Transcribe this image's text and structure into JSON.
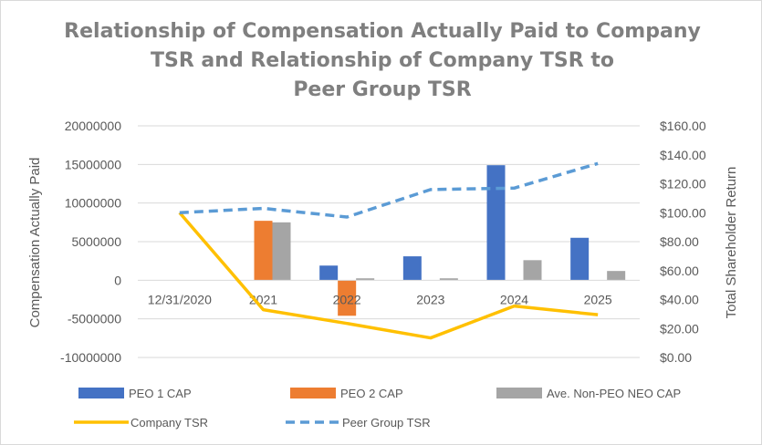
{
  "chart_data": {
    "type": "bar",
    "title_lines": [
      "Relationship of Compensation Actually Paid to Company",
      "TSR and Relationship of Company TSR to",
      "Peer Group TSR"
    ],
    "categories": [
      "12/31/2020",
      "2021",
      "2022",
      "2023",
      "2024",
      "2025"
    ],
    "ylabel": "Compensation Actually Paid",
    "y2label": "Total Shareholder Return",
    "ylim": [
      -10000000,
      20000000
    ],
    "y2lim": [
      0,
      160
    ],
    "y_ticks": [
      "20000000",
      "15000000",
      "10000000",
      "5000000",
      "0",
      "-5000000",
      "-10000000"
    ],
    "y2_ticks": [
      "$160.00",
      "$140.00",
      "$120.00",
      "$100.00",
      "$80.00",
      "$60.00",
      "$40.00",
      "$20.00",
      "$0.00"
    ],
    "grid": true,
    "legend_position": "bottom",
    "series": [
      {
        "name": "PEO 1 CAP",
        "type": "bar",
        "axis": "left",
        "color": "#4472c4",
        "values": [
          null,
          null,
          1900000,
          3100000,
          14900000,
          5500000
        ]
      },
      {
        "name": "PEO 2 CAP",
        "type": "bar",
        "axis": "left",
        "color": "#ed7d31",
        "values": [
          null,
          7700000,
          -4600000,
          null,
          null,
          null
        ]
      },
      {
        "name": "Ave. Non-PEO NEO CAP",
        "type": "bar",
        "axis": "left",
        "color": "#a5a5a5",
        "values": [
          null,
          7500000,
          250000,
          250000,
          2600000,
          1200000
        ]
      },
      {
        "name": "Company TSR",
        "type": "line",
        "axis": "right",
        "color": "#ffc000",
        "dash": false,
        "values": [
          100,
          33,
          23.5,
          13.5,
          35.5,
          29.5
        ]
      },
      {
        "name": "Peer Group TSR",
        "type": "line",
        "axis": "right",
        "color": "#5b9bd5",
        "dash": true,
        "values": [
          100,
          103,
          97,
          116,
          117,
          134
        ]
      }
    ]
  }
}
